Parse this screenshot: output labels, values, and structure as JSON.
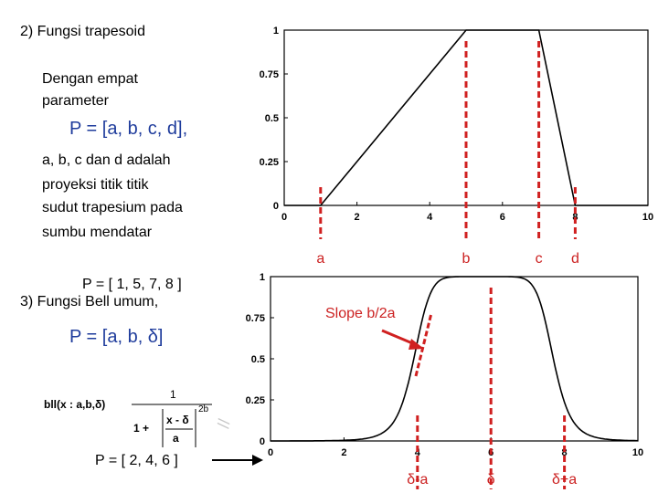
{
  "left": {
    "section2_title": "2)  Fungsi trapesoid",
    "desc_line1": "Dengan empat",
    "desc_line2": "parameter",
    "trap_param": "P = [a, b, c, d],",
    "expl_line1": "a, b, c dan d adalah",
    "expl_line2": "proyeksi titik titik",
    "expl_line3": "sudut trapesium pada",
    "expl_line4": "sumbu mendatar",
    "trap_example": "P = [ 1, 5, 7, 8 ]",
    "section3_title": "3)  Fungsi  Bell umum,",
    "bell_param": "P = [a, b, δ]",
    "formula_lhs": "bll(x : a,b,δ)",
    "formula_num": "1",
    "formula_one_plus": "1 +",
    "formula_inner_num": "x - δ",
    "formula_inner_den": "a",
    "formula_exp": "2b",
    "bell_example": "P = [ 2, 4, 6 ]"
  },
  "chart_data": [
    {
      "type": "line",
      "name": "trapezoid",
      "x": [
        0,
        1,
        5,
        7,
        8,
        10
      ],
      "y": [
        0,
        0,
        1,
        1,
        0,
        0
      ],
      "xlim": [
        0,
        10
      ],
      "ylim": [
        0,
        1
      ],
      "xticks": [
        "0",
        "2",
        "4",
        "6",
        "8",
        "10"
      ],
      "yticks": [
        "0",
        "0.25",
        "0.5",
        "0.75",
        "1"
      ],
      "markers": [
        {
          "label": "a",
          "x": 1
        },
        {
          "label": "b",
          "x": 5
        },
        {
          "label": "c",
          "x": 7
        },
        {
          "label": "d",
          "x": 8
        }
      ]
    },
    {
      "type": "line",
      "name": "generalized-bell",
      "params": {
        "a": 2,
        "b": 4,
        "c": 6
      },
      "xlim": [
        0,
        10
      ],
      "ylim": [
        0,
        1
      ],
      "xticks": [
        "0",
        "2",
        "4",
        "6",
        "8",
        "10"
      ],
      "yticks": [
        "0",
        "0.25",
        "0.5",
        "0.75",
        "1"
      ],
      "annotation": "Slope b/2a",
      "markers": [
        {
          "label": "δ-a",
          "x": 4
        },
        {
          "label": "δ",
          "x": 6
        },
        {
          "label": "δ+a",
          "x": 8
        }
      ]
    }
  ]
}
